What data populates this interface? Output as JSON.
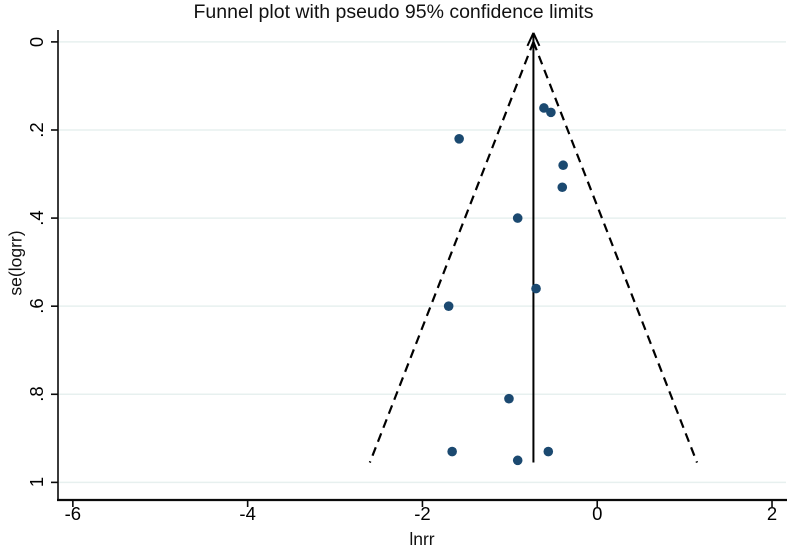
{
  "chart_data": {
    "type": "scatter",
    "title": "Funnel plot with pseudo 95% confidence limits",
    "xlabel": "lnrr",
    "ylabel": "se(logrr)",
    "x_ticks": [
      -6,
      -4,
      -2,
      0,
      2
    ],
    "x_tick_labels": [
      "-6",
      "-4",
      "-2",
      "0",
      "2"
    ],
    "y_ticks": [
      0,
      0.2,
      0.4,
      0.6,
      0.8,
      1
    ],
    "y_tick_labels": [
      "0",
      ".2",
      ".4",
      ".6",
      ".8",
      "1"
    ],
    "xlim": [
      -6.17,
      2.16
    ],
    "ylim": [
      -0.027,
      1.04
    ],
    "y_axis_reversed": true,
    "grid": "horizontal",
    "legend": "none",
    "points": [
      {
        "lnrr": -0.61,
        "se": 0.15
      },
      {
        "lnrr": -0.53,
        "se": 0.16
      },
      {
        "lnrr": -1.58,
        "se": 0.22
      },
      {
        "lnrr": -0.39,
        "se": 0.28
      },
      {
        "lnrr": -0.4,
        "se": 0.33
      },
      {
        "lnrr": -0.91,
        "se": 0.4
      },
      {
        "lnrr": -0.7,
        "se": 0.56
      },
      {
        "lnrr": -1.7,
        "se": 0.6
      },
      {
        "lnrr": -1.01,
        "se": 0.81
      },
      {
        "lnrr": -1.66,
        "se": 0.93
      },
      {
        "lnrr": -0.91,
        "se": 0.95
      },
      {
        "lnrr": -0.56,
        "se": 0.93
      }
    ],
    "pooled_estimate_lnrr": -0.73,
    "pseudo_ci_multiplier": 1.96,
    "funnel_se_max": 0.955,
    "colors": {
      "marker": "#1b4970",
      "line": "#000000",
      "grid": "#e7f0ef",
      "axis": "#0a0a0a",
      "background": "#ffffff"
    }
  }
}
